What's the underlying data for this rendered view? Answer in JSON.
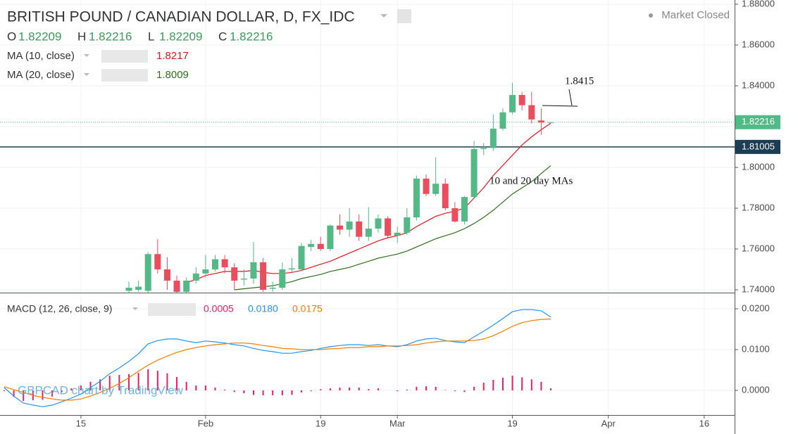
{
  "chart_data": [
    {
      "type": "candlestick",
      "title": "BRITISH POUND / CANADIAN DOLLAR, D, FX_IDC",
      "status": "Market Closed",
      "ohlc_letters": [
        "O",
        "H",
        "L",
        "C"
      ],
      "watermark": "GBPCAD chart by TradingView",
      "annotations": [
        "10 and 20 day MAs"
      ],
      "grid": true,
      "up_color": "#53b987",
      "down_color": "#eb4d5c",
      "x": [
        -13,
        -12,
        -11,
        -10,
        -9,
        -8,
        -7,
        -6,
        -5,
        -4,
        -3,
        -2,
        -1,
        0,
        1,
        2,
        3,
        4,
        5,
        6,
        7,
        8,
        9,
        10,
        11,
        12,
        13,
        14,
        15,
        16,
        17,
        18,
        19,
        20,
        21,
        22,
        23,
        24,
        25,
        26,
        27,
        28,
        29,
        30,
        31,
        32,
        33,
        34,
        35,
        36,
        37,
        38,
        39,
        40,
        41,
        42,
        43,
        44
      ],
      "xlim": [
        -13.44,
        63.17
      ],
      "xticks": [
        {
          "value": -5,
          "label": "15"
        },
        {
          "value": 8,
          "label": "Feb"
        },
        {
          "value": 20,
          "label": "19"
        },
        {
          "value": 28,
          "label": "Mar"
        },
        {
          "value": 40,
          "label": "19"
        },
        {
          "value": 50,
          "label": "Apr"
        },
        {
          "value": 60,
          "label": "16"
        }
      ],
      "ylim": [
        1.73862,
        1.88207
      ],
      "yticks": [
        {
          "value": 1.88,
          "label": "1.88000"
        },
        {
          "value": 1.86,
          "label": "1.86000"
        },
        {
          "value": 1.84,
          "label": "1.84000"
        },
        {
          "value": 1.82,
          "label": "1.82000"
        },
        {
          "value": 1.8,
          "label": "1.80000"
        },
        {
          "value": 1.78,
          "label": "1.78000"
        },
        {
          "value": 1.76,
          "label": "1.76000"
        },
        {
          "value": 1.74,
          "label": "1.74000"
        }
      ],
      "open": [
        null,
        null,
        null,
        null,
        null,
        null,
        null,
        null,
        null,
        null,
        null,
        null,
        null,
        1.7395,
        1.74,
        1.7395,
        1.7575,
        1.75,
        1.7445,
        1.739,
        1.7445,
        1.748,
        1.75,
        1.755,
        1.751,
        1.745,
        1.7455,
        1.7535,
        1.7405,
        1.741,
        1.75,
        1.75,
        1.761,
        1.7625,
        1.76,
        1.7715,
        1.7695,
        1.7735,
        1.766,
        1.77,
        1.775,
        1.7665,
        1.768,
        1.7755,
        1.7945,
        1.787,
        1.792,
        1.78,
        1.7735,
        1.7855,
        1.809,
        1.8095,
        1.819,
        1.827,
        1.8355,
        1.8305,
        1.823,
        1.82209
      ],
      "high": [
        null,
        null,
        null,
        null,
        null,
        null,
        null,
        null,
        null,
        null,
        null,
        null,
        null,
        1.744,
        1.7445,
        1.7585,
        1.7648,
        1.756,
        1.747,
        1.746,
        1.751,
        1.757,
        1.757,
        1.757,
        1.753,
        1.75,
        1.7635,
        1.7555,
        1.744,
        1.7535,
        1.7555,
        1.763,
        1.7645,
        1.766,
        1.772,
        1.777,
        1.78,
        1.777,
        1.7805,
        1.777,
        1.776,
        1.771,
        1.78,
        1.796,
        1.7965,
        1.805,
        1.7945,
        1.783,
        1.786,
        1.813,
        1.812,
        1.826,
        1.829,
        1.8415,
        1.837,
        1.837,
        1.829,
        1.82216
      ],
      "low": [
        null,
        null,
        null,
        null,
        null,
        null,
        null,
        null,
        null,
        null,
        null,
        null,
        null,
        1.738,
        1.739,
        1.738,
        1.748,
        1.74,
        1.737,
        1.737,
        1.743,
        1.746,
        1.749,
        1.748,
        1.74,
        1.742,
        1.743,
        1.739,
        1.739,
        1.74,
        1.7485,
        1.749,
        1.759,
        1.759,
        1.759,
        1.767,
        1.766,
        1.764,
        1.764,
        1.768,
        1.765,
        1.763,
        1.767,
        1.774,
        1.786,
        1.786,
        1.779,
        1.773,
        1.772,
        1.785,
        1.806,
        1.808,
        1.818,
        1.826,
        1.828,
        1.8215,
        1.816,
        1.82209
      ],
      "close": [
        null,
        null,
        null,
        null,
        null,
        null,
        null,
        null,
        null,
        null,
        null,
        null,
        null,
        1.741,
        1.7415,
        1.7575,
        1.75,
        1.7445,
        1.739,
        1.7445,
        1.748,
        1.75,
        1.755,
        1.751,
        1.7445,
        1.7455,
        1.7535,
        1.74,
        1.741,
        1.75,
        1.7505,
        1.7615,
        1.7625,
        1.76,
        1.7715,
        1.7695,
        1.7735,
        1.766,
        1.77,
        1.775,
        1.7665,
        1.768,
        1.7755,
        1.7945,
        1.787,
        1.792,
        1.78,
        1.7735,
        1.7855,
        1.809,
        1.8095,
        1.819,
        1.827,
        1.8355,
        1.8305,
        1.8235,
        1.822,
        1.82216
      ],
      "series": [
        {
          "name": "MA (10, close)",
          "color": "#e8131f",
          "values": [
            null,
            null,
            null,
            null,
            null,
            null,
            null,
            null,
            null,
            null,
            null,
            null,
            null,
            null,
            null,
            null,
            null,
            null,
            null,
            1.7435,
            1.745,
            1.747,
            1.748,
            1.749,
            1.749,
            1.749,
            1.7495,
            1.7485,
            1.748,
            1.748,
            1.7485,
            1.7495,
            1.751,
            1.7525,
            1.754,
            1.756,
            1.758,
            1.76,
            1.762,
            1.764,
            1.7655,
            1.7665,
            1.768,
            1.771,
            1.7735,
            1.776,
            1.7775,
            1.7786,
            1.78,
            1.785,
            1.79,
            1.796,
            1.801,
            1.806,
            1.811,
            1.815,
            1.8185,
            1.8217
          ]
        },
        {
          "name": "MA (20, close)",
          "color": "#2f6f1e",
          "values": [
            null,
            null,
            null,
            null,
            null,
            null,
            null,
            null,
            null,
            null,
            null,
            null,
            null,
            null,
            null,
            null,
            null,
            null,
            null,
            null,
            null,
            null,
            null,
            null,
            1.74,
            1.7405,
            1.741,
            1.7415,
            1.742,
            1.743,
            1.744,
            1.7455,
            1.7465,
            1.7475,
            1.749,
            1.75,
            1.751,
            1.7525,
            1.754,
            1.7555,
            1.7565,
            1.7575,
            1.759,
            1.761,
            1.763,
            1.765,
            1.7665,
            1.768,
            1.77,
            1.7725,
            1.7755,
            1.779,
            1.783,
            1.787,
            1.79,
            1.793,
            1.797,
            1.8009
          ]
        }
      ],
      "hlines": [
        1.81005
      ]
    },
    {
      "type": "macd",
      "title": "MACD (12, 26, close, 9)",
      "ylim": [
        -0.00603,
        0.02362
      ],
      "yticks": [
        {
          "value": 0.02,
          "label": "0.0200"
        },
        {
          "value": 0.01,
          "label": "0.0100"
        },
        {
          "value": 0,
          "label": "0.0000"
        }
      ],
      "series": [
        {
          "style": "histogram",
          "color": "#e91e63",
          "values": [
            -0.0002,
            -0.0016,
            -0.0026,
            -0.0024,
            -0.0023,
            -0.0015,
            -0.0004,
            0.0005,
            0.0012,
            0.0021,
            0.0027,
            0.0036,
            0.0038,
            0.004,
            0.0043,
            0.0052,
            0.0048,
            0.0042,
            0.0033,
            0.0021,
            0.0012,
            0.0012,
            0.0007,
            0.0002,
            -0.0004,
            -0.0007,
            -0.0011,
            -0.0012,
            -0.0012,
            -0.0012,
            -0.0011,
            -0.0005,
            -0.0002,
            0.0003,
            0.0005,
            0.0007,
            0.0007,
            0.0007,
            0.0003,
            0.0005,
            0,
            -0.0002,
            0.0002,
            0.0009,
            0.001,
            0.0009,
            0.0001,
            -0.0002,
            -0.0004,
            0.0009,
            0.0019,
            0.0026,
            0.0031,
            0.0036,
            0.0032,
            0.0027,
            0.0021,
            0.0005
          ]
        },
        {
          "style": "line",
          "color": "#2196f3",
          "values": [
            0.0007,
            -0.0014,
            -0.0031,
            -0.0036,
            -0.004,
            -0.0036,
            -0.0028,
            -0.0019,
            -0.0009,
            0.0007,
            0.0022,
            0.0041,
            0.0055,
            0.0071,
            0.009,
            0.0114,
            0.0122,
            0.0126,
            0.0126,
            0.0121,
            0.0117,
            0.0121,
            0.0119,
            0.0116,
            0.0112,
            0.0109,
            0.0103,
            0.0098,
            0.0095,
            0.0091,
            0.0091,
            0.0095,
            0.0098,
            0.0103,
            0.0107,
            0.011,
            0.0112,
            0.0112,
            0.011,
            0.0112,
            0.0109,
            0.0107,
            0.0112,
            0.0121,
            0.0126,
            0.0128,
            0.0122,
            0.0119,
            0.0117,
            0.0131,
            0.0145,
            0.016,
            0.0176,
            0.0193,
            0.0198,
            0.0198,
            0.0195,
            0.018
          ],
          "value_labels": [
            null,
            null,
            null,
            null,
            null,
            null,
            null,
            null,
            null,
            null,
            null,
            null,
            null,
            null,
            null,
            null,
            null,
            null,
            null,
            null,
            null,
            null,
            null,
            null,
            null,
            null,
            null,
            null,
            null,
            null,
            null,
            null,
            null,
            null,
            null,
            null,
            null,
            null,
            null,
            null,
            null,
            null,
            null,
            null,
            null,
            null,
            null,
            null,
            null,
            null,
            null,
            null,
            null,
            null,
            null,
            null,
            null,
            "0.0180"
          ]
        },
        {
          "style": "line",
          "color": "#f57c00",
          "values": [
            0.0009,
            0.0002,
            -0.0005,
            -0.0012,
            -0.0017,
            -0.0021,
            -0.0024,
            -0.0024,
            -0.0021,
            -0.0014,
            -0.0005,
            0.0005,
            0.0017,
            0.0031,
            0.0047,
            0.0062,
            0.0074,
            0.0084,
            0.0093,
            0.01,
            0.0105,
            0.0109,
            0.0112,
            0.0114,
            0.0116,
            0.0116,
            0.0114,
            0.011,
            0.0107,
            0.0103,
            0.0102,
            0.01,
            0.01,
            0.01,
            0.0102,
            0.0103,
            0.0105,
            0.0105,
            0.0107,
            0.0107,
            0.0109,
            0.0109,
            0.011,
            0.0112,
            0.0116,
            0.0119,
            0.0121,
            0.0121,
            0.0121,
            0.0122,
            0.0126,
            0.0134,
            0.0145,
            0.0157,
            0.0166,
            0.0171,
            0.0174,
            0.0175
          ]
        }
      ]
    }
  ]
}
